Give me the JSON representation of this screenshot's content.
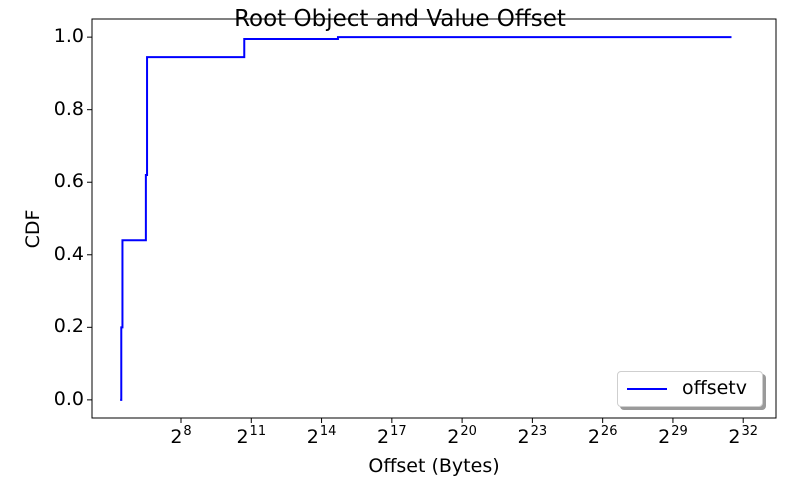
{
  "chart_data": {
    "type": "line",
    "step": true,
    "title": "Root Object and Value Offset",
    "xlabel": "Offset (Bytes)",
    "ylabel": "CDF",
    "xscale": "log2",
    "xlim_exp": [
      4.2,
      33.4
    ],
    "ylim": [
      -0.05,
      1.05
    ],
    "x_ticks": [
      {
        "base": "2",
        "exp": "8",
        "value": 8
      },
      {
        "base": "2",
        "exp": "11",
        "value": 11
      },
      {
        "base": "2",
        "exp": "14",
        "value": 14
      },
      {
        "base": "2",
        "exp": "17",
        "value": 17
      },
      {
        "base": "2",
        "exp": "20",
        "value": 20
      },
      {
        "base": "2",
        "exp": "23",
        "value": 23
      },
      {
        "base": "2",
        "exp": "26",
        "value": 26
      },
      {
        "base": "2",
        "exp": "29",
        "value": 29
      },
      {
        "base": "2",
        "exp": "32",
        "value": 32
      }
    ],
    "y_ticks": [
      {
        "label": "0.0",
        "value": 0.0
      },
      {
        "label": "0.2",
        "value": 0.2
      },
      {
        "label": "0.4",
        "value": 0.4
      },
      {
        "label": "0.6",
        "value": 0.6
      },
      {
        "label": "0.8",
        "value": 0.8
      },
      {
        "label": "1.0",
        "value": 1.0
      }
    ],
    "legend_position": "lower-right",
    "series": [
      {
        "name": "offsetv",
        "color": "#0000ff",
        "x_log2": [
          5.4,
          5.45,
          5.5,
          6.5,
          6.55,
          10.7,
          14.7,
          18.7,
          31.5
        ],
        "y": [
          0.0,
          0.2,
          0.44,
          0.62,
          0.945,
          0.995,
          1.0,
          1.0,
          1.0
        ]
      }
    ]
  }
}
